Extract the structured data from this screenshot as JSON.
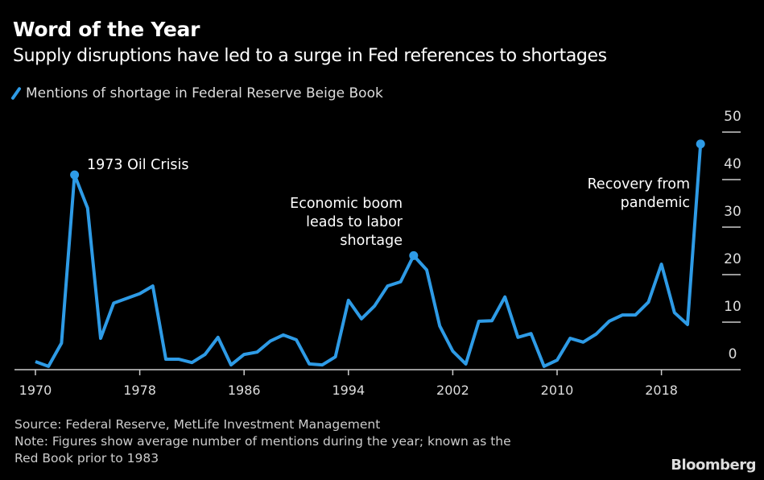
{
  "title": "Word of the Year",
  "subtitle": "Supply disruptions have led to a surge in Fed references to shortages",
  "source": "Source: Federal Reserve, MetLife Investment Management",
  "note_line1": "Note: Figures show average number of mentions during the year; known as the",
  "note_line2": "Red Book prior to 1983",
  "logo": "Bloomberg",
  "colors": {
    "line": "#2e9be6",
    "axis": "#cccccc"
  },
  "chart_data": {
    "type": "line",
    "title": "Word of the Year",
    "legend": [
      "Mentions of shortage in Federal Reserve Beige Book"
    ],
    "legend_placement": "top-left",
    "x": [
      1970,
      1971,
      1972,
      1973,
      1974,
      1975,
      1976,
      1977,
      1978,
      1979,
      1980,
      1981,
      1982,
      1983,
      1984,
      1985,
      1986,
      1987,
      1988,
      1989,
      1990,
      1991,
      1992,
      1993,
      1994,
      1995,
      1996,
      1997,
      1998,
      1999,
      2000,
      2001,
      2002,
      2003,
      2004,
      2005,
      2006,
      2007,
      2008,
      2009,
      2010,
      2011,
      2012,
      2013,
      2014,
      2015,
      2016,
      2017,
      2018,
      2019,
      2020,
      2021
    ],
    "series": [
      {
        "name": "Mentions of shortage in Federal Reserve Beige Book",
        "values": [
          1.7,
          0.7,
          5.6,
          41,
          34,
          6.6,
          14,
          15,
          16,
          17.6,
          2.2,
          2.2,
          1.5,
          3.2,
          6.8,
          1,
          3.2,
          3.7,
          6,
          7.3,
          6.3,
          1.2,
          1,
          2.7,
          14.6,
          10.7,
          13.4,
          17.6,
          18.5,
          24,
          21,
          9.2,
          3.9,
          1.2,
          10.2,
          10.3,
          15.3,
          6.8,
          7.6,
          0.7,
          2,
          6.6,
          5.8,
          7.5,
          10.2,
          11.5,
          11.5,
          14.2,
          22.2,
          12,
          9.5,
          47.5
        ]
      }
    ],
    "xticks": [
      "1970",
      "1978",
      "1986",
      "1994",
      "2002",
      "2010",
      "2018"
    ],
    "yticks": [
      "0",
      "10",
      "20",
      "30",
      "40",
      "50"
    ],
    "xlim": [
      1970,
      2021
    ],
    "ylim": [
      0,
      50
    ],
    "annotations": [
      {
        "text": "1973 Oil Crisis",
        "x": 1973
      },
      {
        "text": [
          "Economic boom",
          "leads to labor",
          "shortage"
        ],
        "x": 1999
      },
      {
        "text": [
          "Recovery from",
          "pandemic"
        ],
        "x": 2021
      }
    ],
    "xlabel": "",
    "ylabel": "",
    "grid": false
  }
}
